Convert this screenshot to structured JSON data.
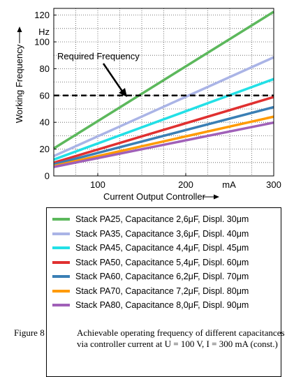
{
  "chart_data": {
    "type": "line",
    "title": "",
    "xlabel": "Current Output Controller",
    "xunit": "mA",
    "ylabel": "Working Frequency",
    "yunit": "Hz",
    "xlim": [
      50,
      300
    ],
    "ylim": [
      0,
      125
    ],
    "xticks": [
      100,
      200,
      300
    ],
    "yticks": [
      0,
      20,
      40,
      60,
      80,
      100,
      120
    ],
    "grid": true,
    "reference_line": {
      "y": 60,
      "label": "Required Frequency"
    },
    "series": [
      {
        "name": "Stack PA25, Capacitance 2,6μF, Displ. 30μm",
        "color": "#5cb85c",
        "x": [
          50,
          300
        ],
        "y": [
          20.5,
          122.5
        ]
      },
      {
        "name": "Stack PA35, Capacitance 3,6μF, Displ. 40μm",
        "color": "#aab4e6",
        "x": [
          50,
          300
        ],
        "y": [
          14.8,
          88.5
        ]
      },
      {
        "name": "Stack PA45, Capacitance 4,4μF, Displ. 45μm",
        "color": "#22e0e6",
        "x": [
          50,
          300
        ],
        "y": [
          12.2,
          72.3
        ]
      },
      {
        "name": "Stack PA50, Capacitance 5,4μF, Displ. 60μm",
        "color": "#e03030",
        "x": [
          50,
          300
        ],
        "y": [
          9.9,
          58.9
        ]
      },
      {
        "name": "Stack PA60, Capacitance 6,2μF, Displ. 70μm",
        "color": "#3a7fb5",
        "x": [
          50,
          300
        ],
        "y": [
          8.6,
          51.3
        ]
      },
      {
        "name": "Stack PA70, Capacitance 7,2μF, Displ. 80μm",
        "color": "#ff9a00",
        "x": [
          50,
          300
        ],
        "y": [
          7.4,
          44.2
        ]
      },
      {
        "name": "Stack PA80, Capacitance 8,0μF, Displ. 90μm",
        "color": "#a060b8",
        "x": [
          50,
          300
        ],
        "y": [
          6.7,
          39.8
        ]
      }
    ]
  },
  "caption": {
    "label": "Figure 8",
    "text": "Achievable operating frequency of different capacitances via controller current at U = 100 V, I = 300 mA (const.)"
  }
}
